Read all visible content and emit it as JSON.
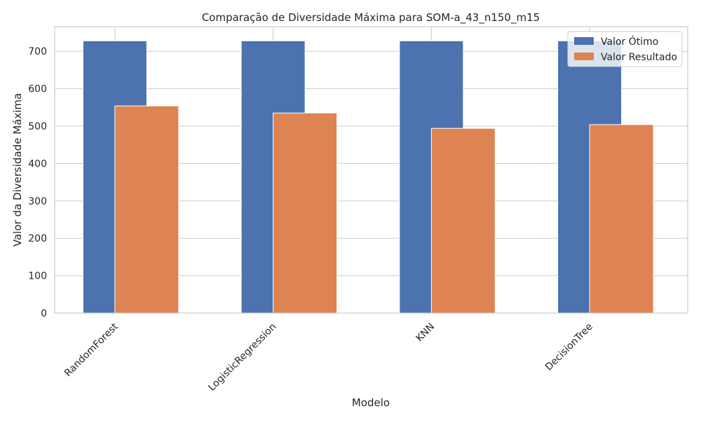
{
  "chart_data": {
    "type": "bar",
    "title": "Comparação de Diversidade Máxima para SOM-a_43_n150_m15",
    "xlabel": "Modelo",
    "ylabel": "Valor da Diversidade Máxima",
    "categories": [
      "RandomForest",
      "LogisticRegression",
      "KNN",
      "DecisionTree"
    ],
    "series": [
      {
        "name": "Valor Ótimo",
        "color": "#4c72b0",
        "values": [
          728,
          728,
          728,
          728
        ]
      },
      {
        "name": "Valor Resultado",
        "color": "#dd8452",
        "values": [
          554,
          535,
          494,
          504
        ]
      }
    ],
    "ylim": [
      0,
      766
    ],
    "yticks": [
      0,
      100,
      200,
      300,
      400,
      500,
      600,
      700
    ],
    "grid": true,
    "legend_position": "top-right"
  }
}
